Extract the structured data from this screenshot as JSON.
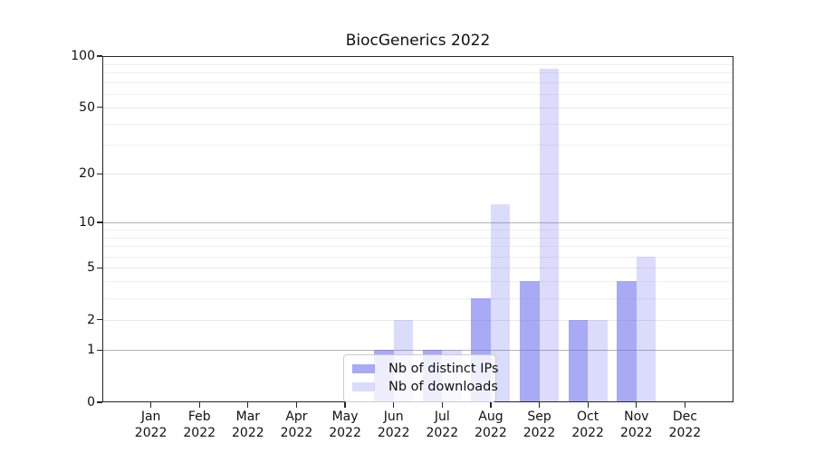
{
  "chart_data": {
    "type": "bar",
    "title": "BiocGenerics 2022",
    "categories": [
      "Jan 2022",
      "Feb 2022",
      "Mar 2022",
      "Apr 2022",
      "May 2022",
      "Jun 2022",
      "Jul 2022",
      "Aug 2022",
      "Sep 2022",
      "Oct 2022",
      "Nov 2022",
      "Dec 2022"
    ],
    "series": [
      {
        "name": "Nb of distinct IPs",
        "color": "rgba(105,108,240,0.58)",
        "values": [
          0,
          0,
          0,
          0,
          0,
          1,
          1,
          3,
          4,
          2,
          4,
          0
        ]
      },
      {
        "name": "Nb of downloads",
        "color": "rgba(105,108,240,0.24)",
        "values": [
          0,
          0,
          0,
          0,
          0,
          2,
          1,
          13,
          84,
          2,
          6,
          0
        ]
      }
    ],
    "y_axis": {
      "scale": "log10(1+x)",
      "ylim": [
        0,
        100
      ],
      "ticks": [
        0,
        1,
        2,
        5,
        10,
        20,
        50,
        100
      ],
      "emphasized_gridlines": [
        1,
        10
      ],
      "minor_gridlines": [
        3,
        4,
        6,
        7,
        8,
        9,
        30,
        40,
        60,
        70,
        80,
        90
      ]
    },
    "x_axis": {
      "tick_count": 12
    },
    "legend": {
      "position": "bottom-center",
      "entries": [
        "Nb of distinct IPs",
        "Nb of downloads"
      ]
    },
    "grid": true
  }
}
